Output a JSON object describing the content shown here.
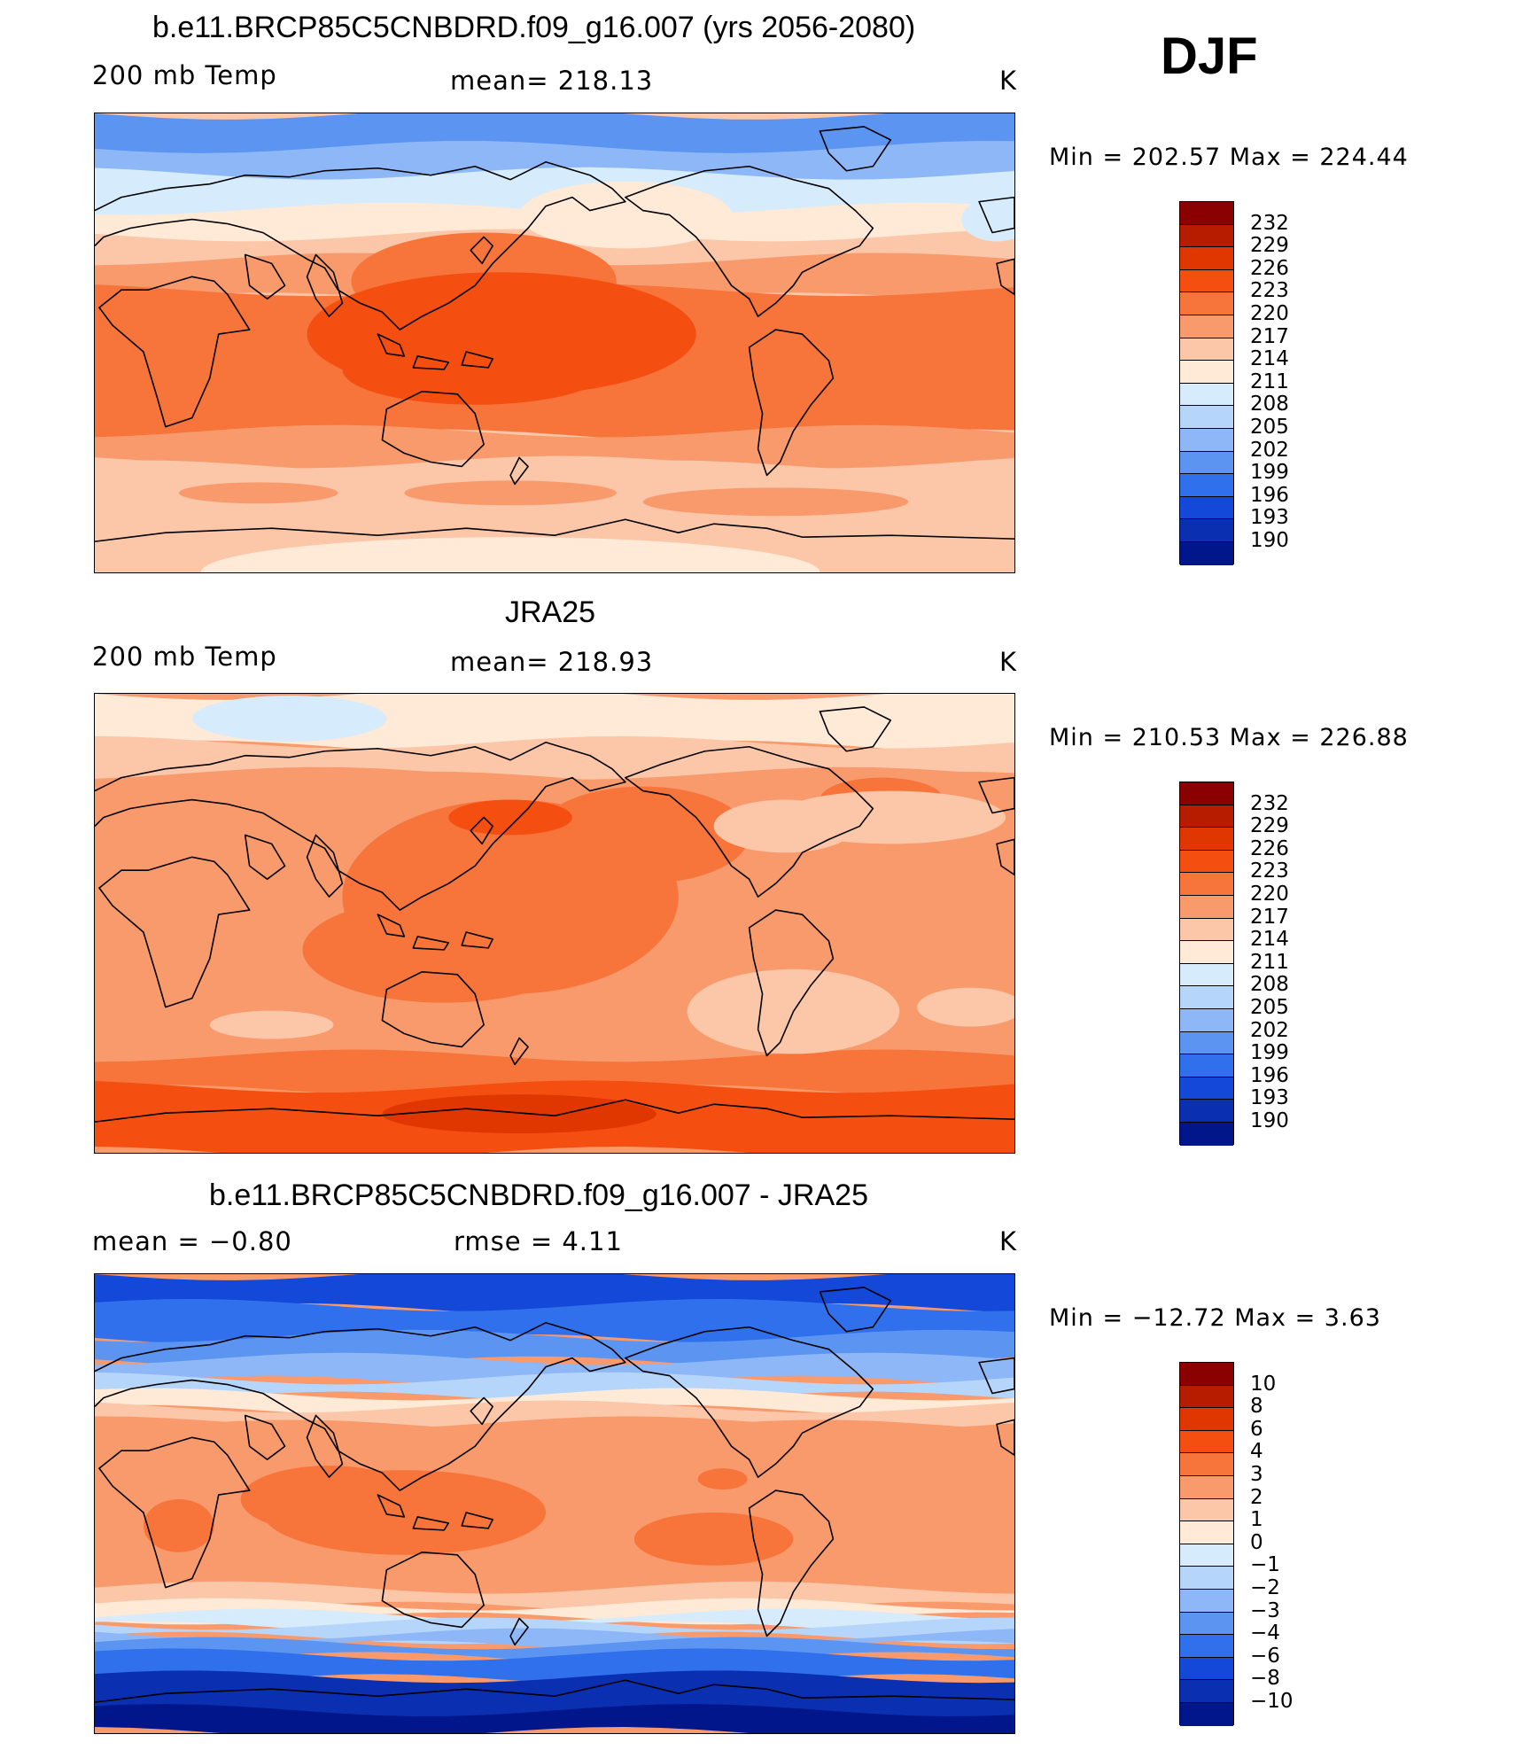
{
  "season": "DJF",
  "panels": [
    {
      "id": "model",
      "title": "b.e11.BRCP85C5CNBDRD.f09_g16.007 (yrs 2056-2080)",
      "left_label": "200 mb Temp",
      "center_label": "mean=  218.13",
      "units": "K",
      "minmax": "Min  =  202.57  Max  =  224.44",
      "colorbar": {
        "labels": [
          "232",
          "229",
          "226",
          "223",
          "220",
          "217",
          "214",
          "211",
          "208",
          "205",
          "202",
          "199",
          "196",
          "193",
          "190"
        ],
        "colors": [
          "#8b0000",
          "#b81c00",
          "#e03600",
          "#f44e10",
          "#f7743b",
          "#f99a6d",
          "#fcc6a8",
          "#feead6",
          "#d6ebfb",
          "#b6d5fa",
          "#8db7f7",
          "#5c94f2",
          "#3070ec",
          "#1448d8",
          "#0a2fb0",
          "#00168a"
        ]
      },
      "field": "model"
    },
    {
      "id": "obs",
      "title": "JRA25",
      "left_label": "200 mb Temp",
      "center_label": "mean=  218.93",
      "units": "K",
      "minmax": "Min  =  210.53  Max  =  226.88",
      "colorbar": {
        "labels": [
          "232",
          "229",
          "226",
          "223",
          "220",
          "217",
          "214",
          "211",
          "208",
          "205",
          "202",
          "199",
          "196",
          "193",
          "190"
        ],
        "colors": [
          "#8b0000",
          "#b81c00",
          "#e03600",
          "#f44e10",
          "#f7743b",
          "#f99a6d",
          "#fcc6a8",
          "#feead6",
          "#d6ebfb",
          "#b6d5fa",
          "#8db7f7",
          "#5c94f2",
          "#3070ec",
          "#1448d8",
          "#0a2fb0",
          "#00168a"
        ]
      },
      "field": "obs"
    },
    {
      "id": "diff",
      "title": "b.e11.BRCP85C5CNBDRD.f09_g16.007 - JRA25",
      "left_label": "mean  =    −0.80",
      "center_label": "rmse  =     4.11",
      "units": "K",
      "minmax": "Min  =  −12.72  Max  =     3.63",
      "colorbar": {
        "labels": [
          "10",
          "8",
          "6",
          "4",
          "3",
          "2",
          "1",
          "0",
          "−1",
          "−2",
          "−3",
          "−4",
          "−6",
          "−8",
          "−10"
        ],
        "colors": [
          "#8b0000",
          "#b81c00",
          "#e03600",
          "#f44e10",
          "#f7743b",
          "#f99a6d",
          "#fcc6a8",
          "#feead6",
          "#d6ebfb",
          "#b6d5fa",
          "#8db7f7",
          "#5c94f2",
          "#3070ec",
          "#1448d8",
          "#0a2fb0",
          "#00168a"
        ]
      },
      "field": "diff"
    }
  ]
}
